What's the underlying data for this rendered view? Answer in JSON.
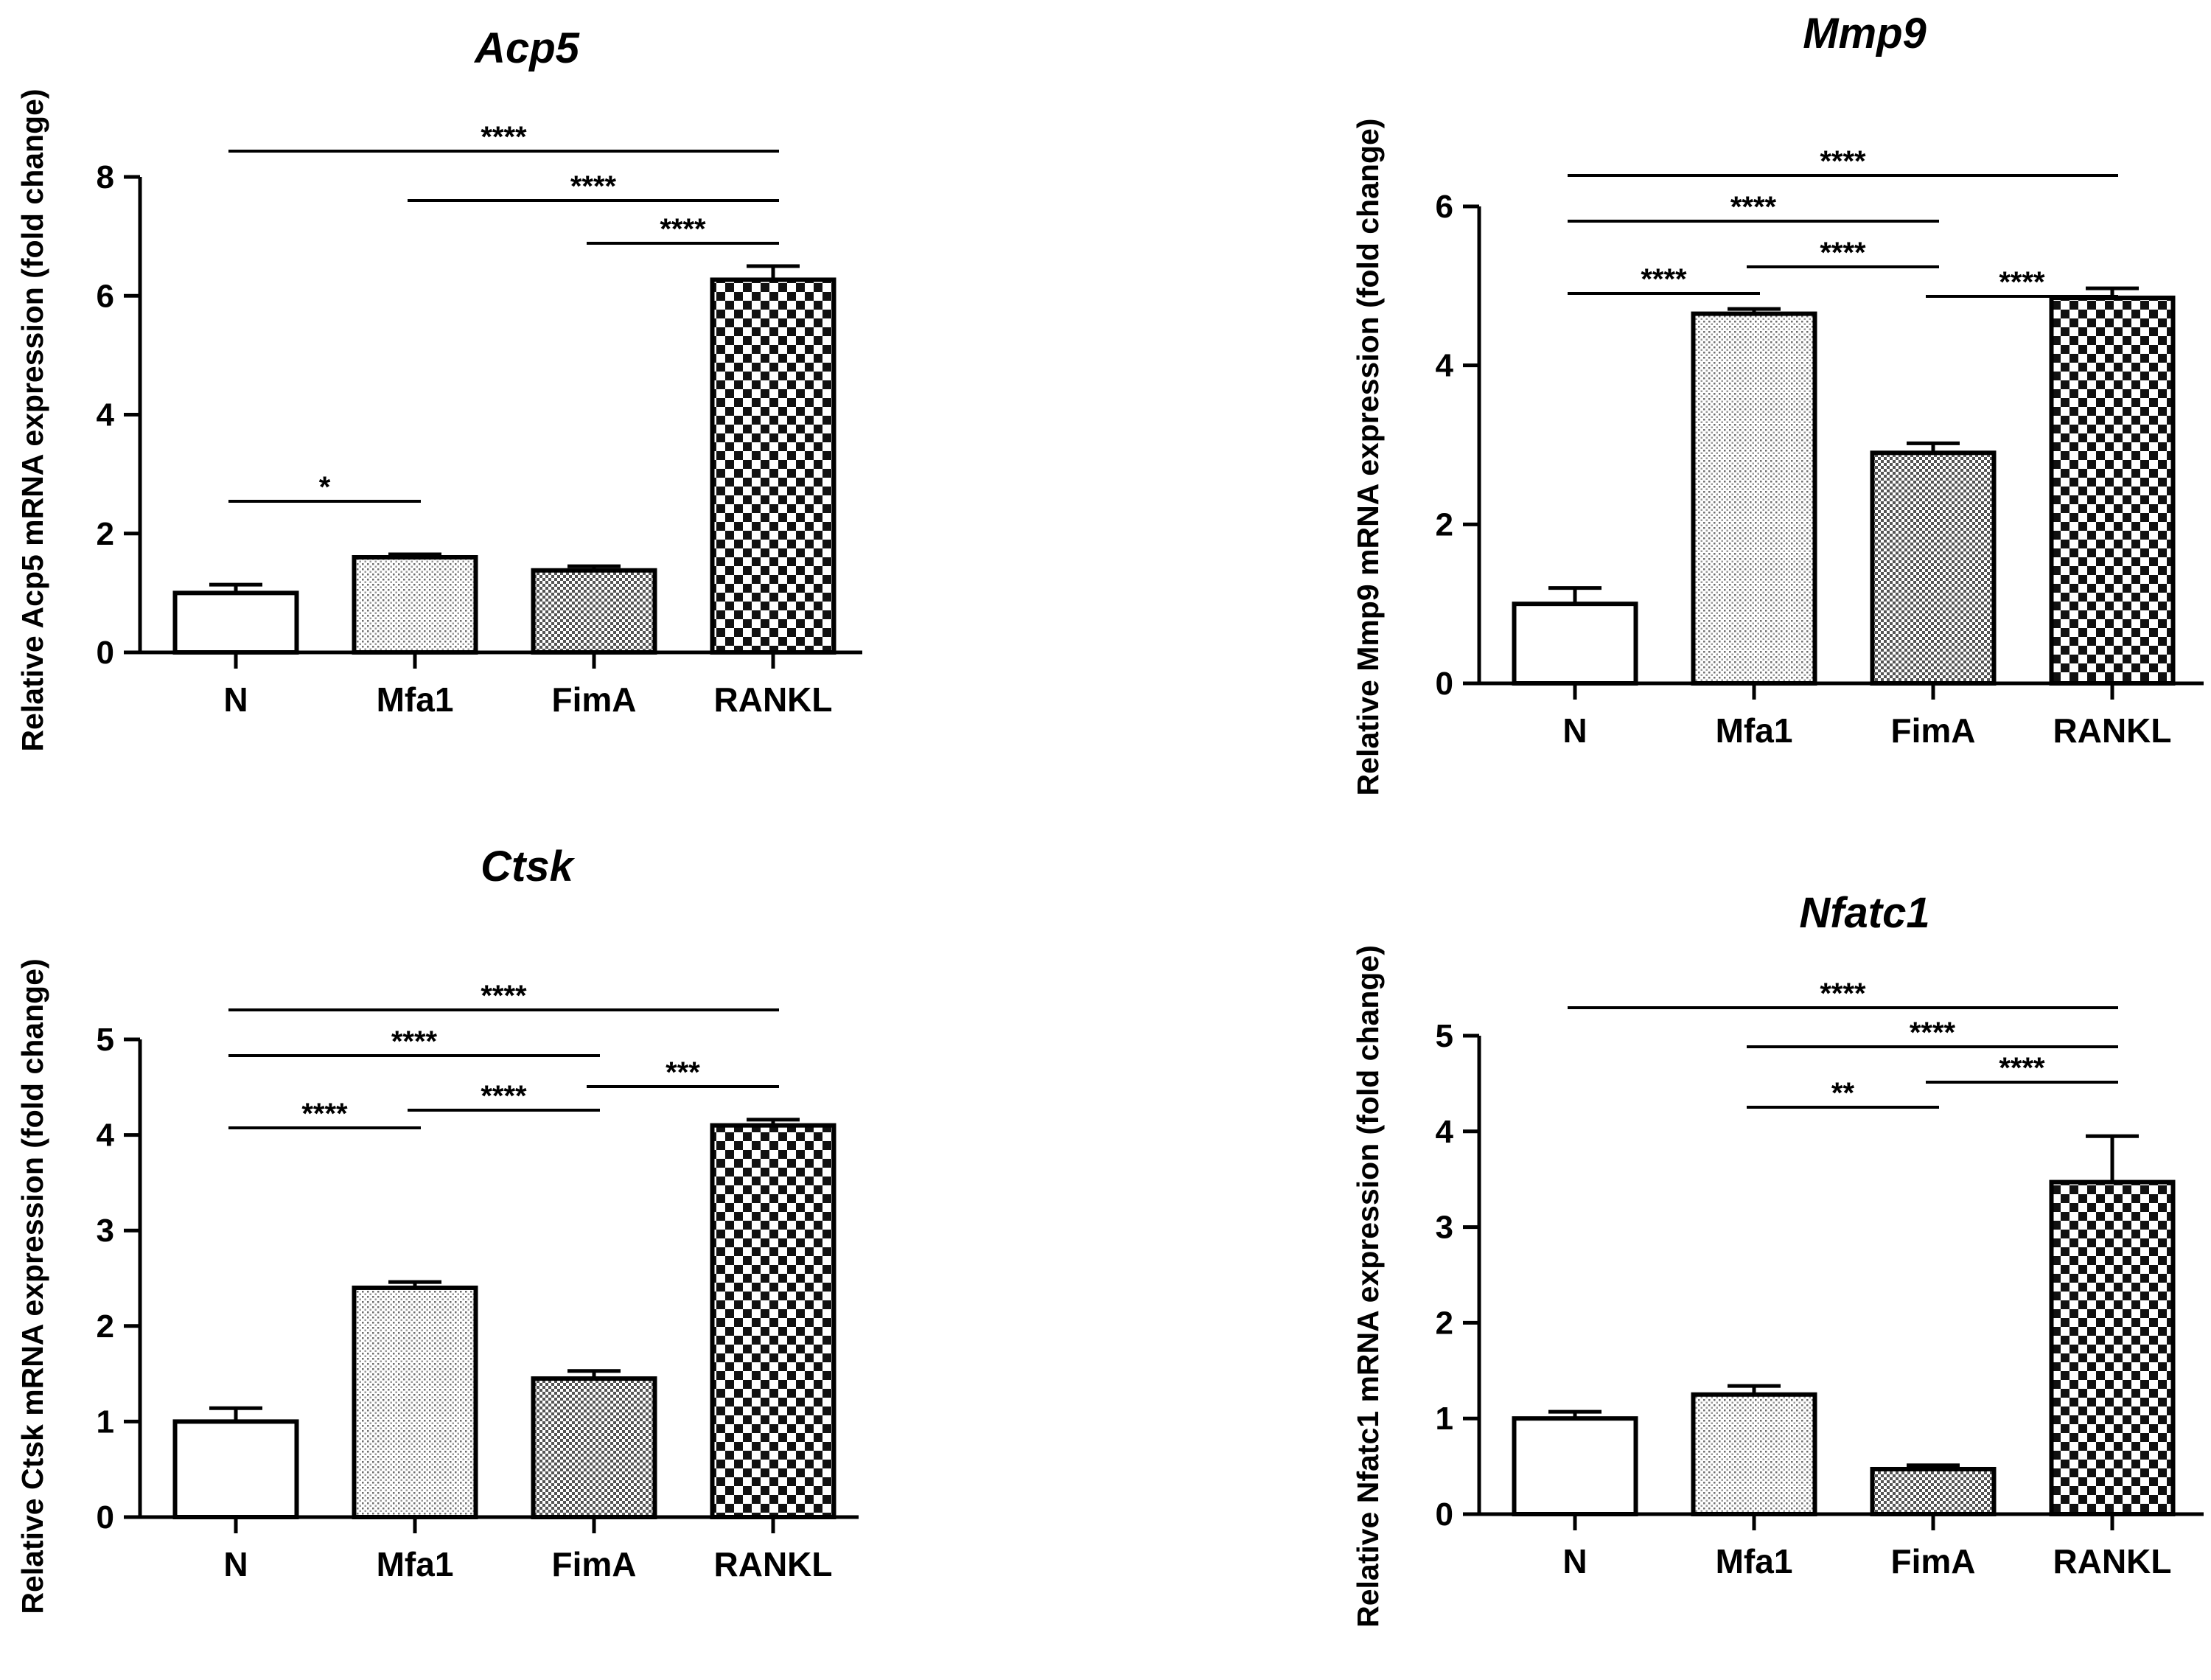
{
  "chart_data": [
    {
      "type": "bar",
      "title": "Acp5",
      "ylabel": "Relative Acp5 mRNA expression (fold change)",
      "xlabel": "",
      "categories": [
        "N",
        "Mfa1",
        "FimA",
        "RANKL"
      ],
      "values": [
        1.0,
        1.6,
        1.38,
        6.27
      ],
      "errors": [
        0.14,
        0.05,
        0.07,
        0.23
      ],
      "ylim": [
        0,
        8
      ],
      "yticks": [
        0,
        2,
        4,
        6,
        8
      ],
      "significance": [
        {
          "from": "N",
          "to": "RANKL",
          "label": "****"
        },
        {
          "from": "Mfa1",
          "to": "RANKL",
          "label": "****"
        },
        {
          "from": "FimA",
          "to": "RANKL",
          "label": "****"
        },
        {
          "from": "N",
          "to": "Mfa1",
          "label": "*"
        }
      ]
    },
    {
      "type": "bar",
      "title": "Mmp9",
      "ylabel": "Relative Mmp9 mRNA expression (fold change)",
      "xlabel": "",
      "categories": [
        "N",
        "Mfa1",
        "FimA",
        "RANKL"
      ],
      "values": [
        1.0,
        4.65,
        2.9,
        4.85
      ],
      "errors": [
        0.2,
        0.06,
        0.12,
        0.12
      ],
      "ylim": [
        0,
        6
      ],
      "yticks": [
        0,
        2,
        4,
        6
      ],
      "significance": [
        {
          "from": "N",
          "to": "RANKL",
          "label": "****"
        },
        {
          "from": "N",
          "to": "FimA",
          "label": "****"
        },
        {
          "from": "FimA",
          "to": "RANKL",
          "label": "****"
        },
        {
          "from": "Mfa1",
          "to": "FimA",
          "label": "****"
        },
        {
          "from": "N",
          "to": "Mfa1",
          "label": "****"
        }
      ]
    },
    {
      "type": "bar",
      "title": "Ctsk",
      "ylabel": "Relative Ctsk mRNA expression (fold change)",
      "xlabel": "",
      "categories": [
        "N",
        "Mfa1",
        "FimA",
        "RANKL"
      ],
      "values": [
        1.0,
        2.4,
        1.45,
        4.1
      ],
      "errors": [
        0.14,
        0.06,
        0.08,
        0.06
      ],
      "ylim": [
        0,
        5
      ],
      "yticks": [
        0,
        1,
        2,
        3,
        4,
        5
      ],
      "significance": [
        {
          "from": "N",
          "to": "RANKL",
          "label": "****"
        },
        {
          "from": "N",
          "to": "FimA",
          "label": "****"
        },
        {
          "from": "FimA",
          "to": "RANKL",
          "label": "***"
        },
        {
          "from": "Mfa1",
          "to": "FimA",
          "label": "****"
        },
        {
          "from": "N",
          "to": "Mfa1",
          "label": "****"
        }
      ]
    },
    {
      "type": "bar",
      "title": "Nfatc1",
      "ylabel": "Relative Nfatc1 mRNA expression (fold change)",
      "xlabel": "",
      "categories": [
        "N",
        "Mfa1",
        "FimA",
        "RANKL"
      ],
      "values": [
        1.0,
        1.25,
        0.47,
        3.47
      ],
      "errors": [
        0.07,
        0.09,
        0.04,
        0.48
      ],
      "ylim": [
        0,
        5
      ],
      "yticks": [
        0,
        1,
        2,
        3,
        4,
        5
      ],
      "significance": [
        {
          "from": "N",
          "to": "RANKL",
          "label": "****"
        },
        {
          "from": "Mfa1",
          "to": "RANKL",
          "label": "****"
        },
        {
          "from": "FimA",
          "to": "RANKL",
          "label": "****"
        },
        {
          "from": "Mfa1",
          "to": "FimA",
          "label": "**"
        }
      ]
    }
  ]
}
